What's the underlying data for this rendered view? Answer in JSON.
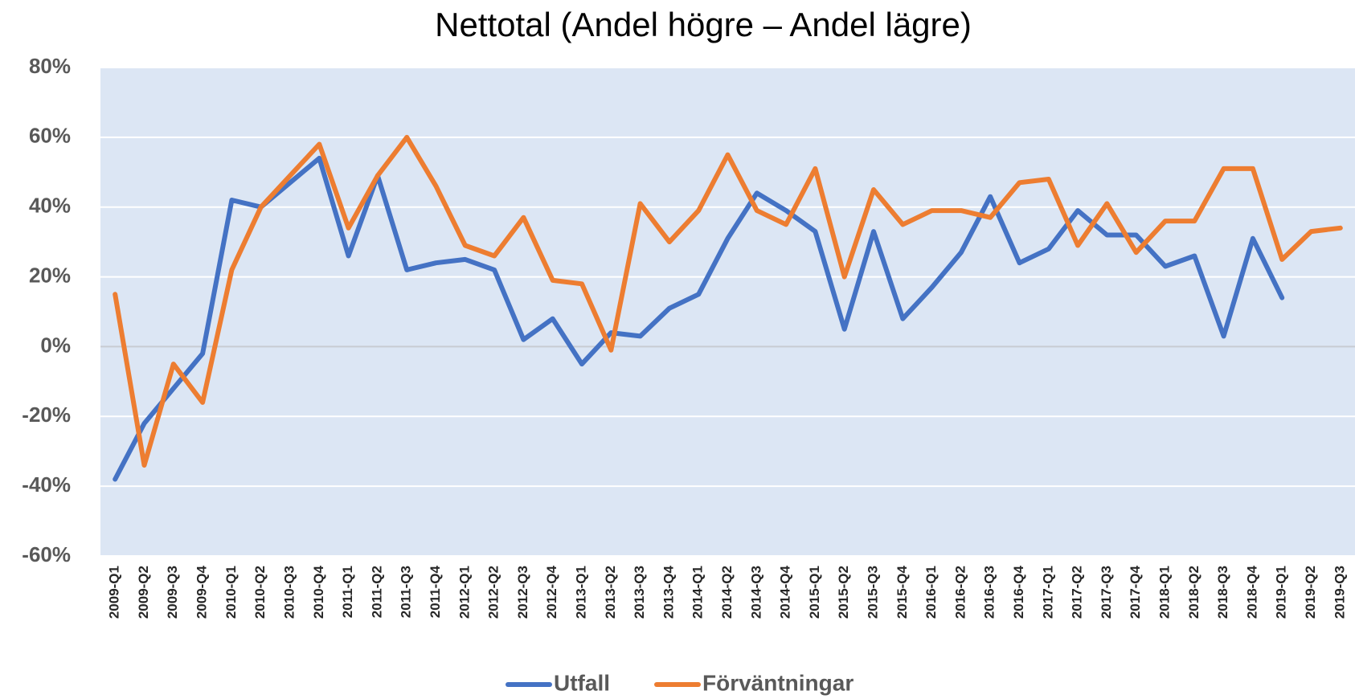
{
  "chart_data": {
    "type": "line",
    "title": "Nettotal (Andel högre – Andel lägre)",
    "categories": [
      "2009-Q1",
      "2009-Q2",
      "2009-Q3",
      "2009-Q4",
      "2010-Q1",
      "2010-Q2",
      "2010-Q3",
      "2010-Q4",
      "2011-Q1",
      "2011-Q2",
      "2011-Q3",
      "2011-Q4",
      "2012-Q1",
      "2012-Q2",
      "2012-Q3",
      "2012-Q4",
      "2013-Q1",
      "2013-Q2",
      "2013-Q3",
      "2013-Q4",
      "2014-Q1",
      "2014-Q2",
      "2014-Q3",
      "2014-Q4",
      "2015-Q1",
      "2015-Q2",
      "2015-Q3",
      "2015-Q4",
      "2016-Q1",
      "2016-Q2",
      "2016-Q3",
      "2016-Q4",
      "2017-Q1",
      "2017-Q2",
      "2017-Q3",
      "2017-Q4",
      "2018-Q1",
      "2018-Q2",
      "2018-Q3",
      "2018-Q4",
      "2019-Q1",
      "2019-Q2",
      "2019-Q3"
    ],
    "series": [
      {
        "name": "Utfall",
        "color": "#4472c4",
        "values": [
          -38,
          -22,
          -12,
          -2,
          42,
          40,
          47,
          54,
          26,
          49,
          22,
          24,
          25,
          22,
          2,
          8,
          -5,
          4,
          3,
          11,
          15,
          31,
          44,
          39,
          33,
          5,
          33,
          8,
          17,
          27,
          43,
          24,
          28,
          39,
          32,
          32,
          23,
          26,
          3,
          31,
          14,
          null,
          null
        ]
      },
      {
        "name": "Förväntningar",
        "color": "#ed7d31",
        "values": [
          15,
          -34,
          -5,
          -16,
          22,
          40,
          49,
          58,
          34,
          49,
          60,
          46,
          29,
          26,
          37,
          19,
          18,
          -1,
          41,
          30,
          39,
          55,
          39,
          35,
          51,
          20,
          45,
          35,
          39,
          39,
          37,
          47,
          48,
          29,
          41,
          27,
          36,
          36,
          51,
          51,
          25,
          33,
          34
        ]
      }
    ],
    "ylim": [
      -60,
      80
    ],
    "yticks": [
      {
        "value": -60,
        "label": "-60%"
      },
      {
        "value": -40,
        "label": "-40%"
      },
      {
        "value": -20,
        "label": "-20%"
      },
      {
        "value": 0,
        "label": "0%"
      },
      {
        "value": 20,
        "label": "20%"
      },
      {
        "value": 40,
        "label": "40%"
      },
      {
        "value": 60,
        "label": "60%"
      },
      {
        "value": 80,
        "label": "80%"
      }
    ],
    "grid": true,
    "legend": "bottom"
  }
}
